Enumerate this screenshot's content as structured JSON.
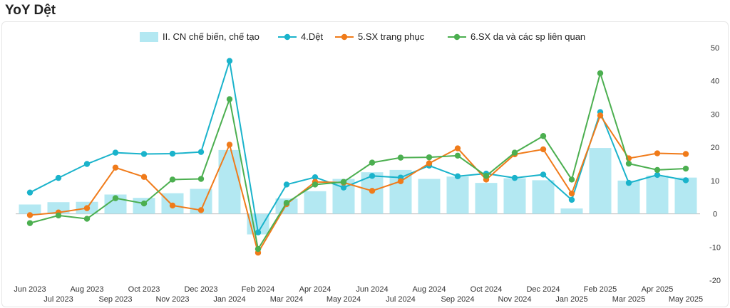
{
  "chart_data": {
    "type": "bar",
    "title": "YoY Dệt",
    "categories": [
      "Jun 2023",
      "Jul 2023",
      "Aug 2023",
      "Sep 2023",
      "Oct 2023",
      "Nov 2023",
      "Dec 2023",
      "Jan 2024",
      "Feb 2024",
      "Mar 2024",
      "Apr 2024",
      "May 2024",
      "Jun 2024",
      "Jul 2024",
      "Aug 2024",
      "Sep 2024",
      "Oct 2024",
      "Nov 2024",
      "Dec 2024",
      "Jan 2025",
      "Feb 2025",
      "Mar 2025",
      "Apr 2025",
      "May 2025"
    ],
    "ylim": [
      -20,
      50
    ],
    "yticks": [
      -20,
      -10,
      0,
      10,
      20,
      30,
      40,
      50
    ],
    "y_axis_side": "right",
    "legend_position": "top",
    "bar_series": {
      "name": "II. CN chế biến, chế tạo",
      "color": "#b3e8f2",
      "values": [
        2.8,
        3.5,
        3.6,
        5.8,
        4.8,
        6.2,
        7.5,
        19.2,
        -6.2,
        4.6,
        6.8,
        10.5,
        12.5,
        13.2,
        10.5,
        11.2,
        9.3,
        10.7,
        10.1,
        1.6,
        19.8,
        10.0,
        11.5,
        10.9
      ]
    },
    "series": [
      {
        "name": "4.Dệt",
        "color": "#1ab3cb",
        "values": [
          6.4,
          10.8,
          15.0,
          18.4,
          18.0,
          18.1,
          18.6,
          46.0,
          -5.6,
          8.8,
          11.0,
          7.9,
          11.4,
          10.9,
          14.5,
          11.3,
          12.1,
          10.8,
          11.8,
          4.2,
          30.6,
          9.3,
          11.7,
          10.1
        ]
      },
      {
        "name": "5.SX trang phục",
        "color": "#f07b1a",
        "values": [
          -0.4,
          0.4,
          1.7,
          13.9,
          11.1,
          2.5,
          1.1,
          20.8,
          -11.7,
          2.9,
          9.6,
          9.4,
          6.9,
          9.8,
          15.2,
          19.7,
          10.3,
          17.9,
          19.4,
          6.1,
          29.6,
          16.7,
          18.2,
          18.0
        ]
      },
      {
        "name": "6.SX da và các sp liên quan",
        "color": "#4caf50",
        "values": [
          -2.8,
          -0.5,
          -1.5,
          4.7,
          3.1,
          10.3,
          10.5,
          34.5,
          -10.6,
          3.3,
          8.8,
          9.6,
          15.4,
          16.9,
          17.0,
          17.5,
          11.4,
          18.4,
          23.4,
          10.3,
          42.3,
          15.1,
          13.2,
          13.6
        ]
      }
    ]
  }
}
